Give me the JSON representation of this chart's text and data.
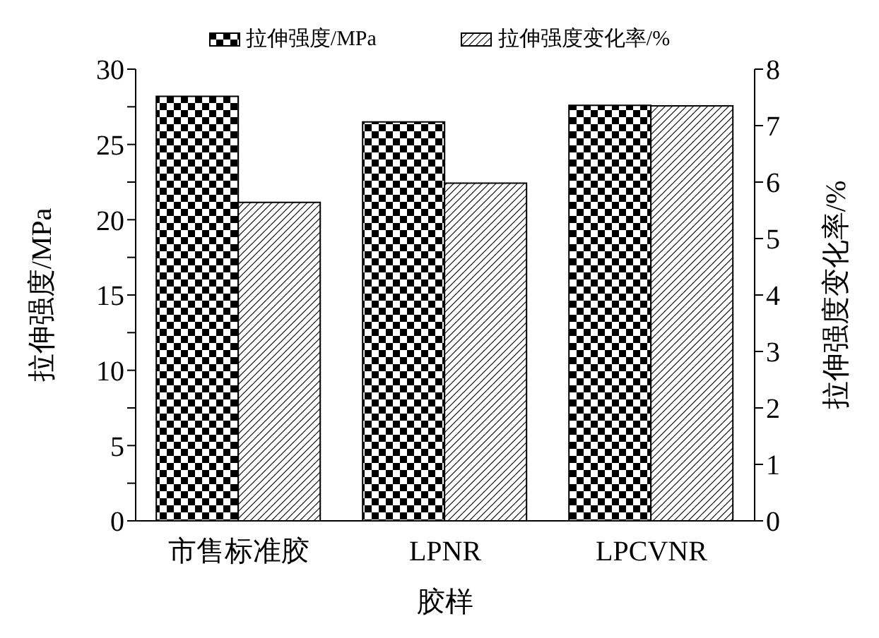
{
  "chart_data": {
    "type": "bar",
    "xlabel": "胶样",
    "ylabel": "拉伸强度/MPa",
    "y2label": "拉伸强度变化率/%",
    "categories": [
      "市售标准胶",
      "LPNR",
      "LPCVNR"
    ],
    "series": [
      {
        "name": "拉伸强度/MPa",
        "color": "#000000",
        "values": [
          28.2,
          26.5,
          27.6
        ]
      },
      {
        "name": "拉伸强度变化率/%",
        "color": "#000000",
        "values": [
          5.64,
          5.98,
          7.35
        ],
        "axis": "y2"
      }
    ],
    "ylim": [
      0,
      30
    ],
    "yticks": [
      0,
      {
        "value": 2.5,
        "label": null
      },
      5,
      {
        "value": 7.5,
        "label": null
      },
      10,
      {
        "value": 12.5,
        "label": null
      },
      15,
      {
        "value": 17.5,
        "label": null
      },
      20,
      {
        "value": 22.5,
        "label": null
      },
      25,
      {
        "value": 27.5,
        "label": null
      },
      30
    ],
    "y2lim": [
      0,
      8
    ],
    "y2ticks": [
      0,
      1,
      2,
      3,
      4,
      5,
      6,
      7,
      8
    ],
    "legend": "top",
    "grid": false
  }
}
